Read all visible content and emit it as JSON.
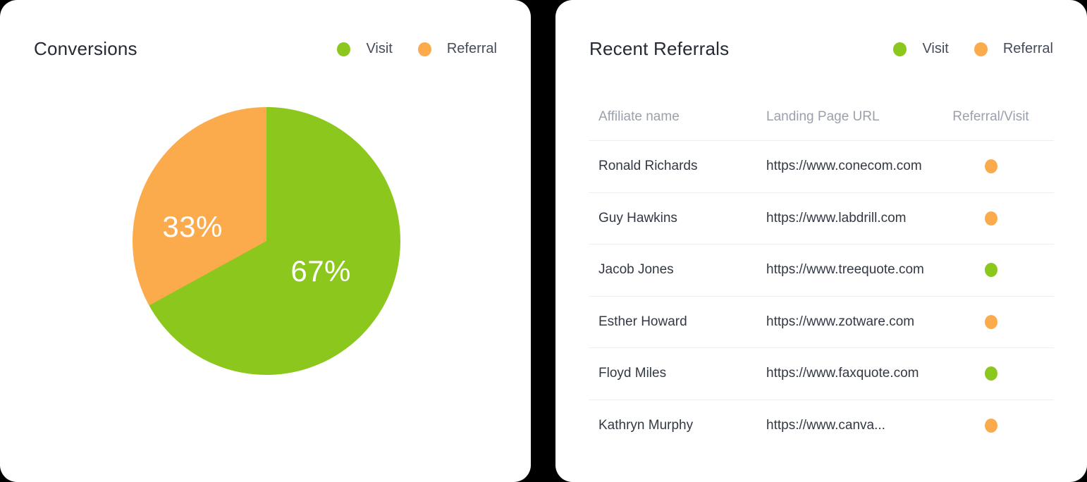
{
  "colors": {
    "visit": "#8BC71D",
    "referral": "#FBAB4C",
    "card_bg": "#FFFFFF",
    "page_bg": "#000000",
    "divider": "#EFECF6",
    "title_text": "#252A35",
    "header_text": "#9BA1AC",
    "cell_text": "#333944"
  },
  "legend": {
    "items": [
      {
        "id": "visit",
        "label": "Visit"
      },
      {
        "id": "referral",
        "label": "Referral"
      }
    ]
  },
  "conversions": {
    "title": "Conversions"
  },
  "chart_data": {
    "type": "pie",
    "title": "Conversions",
    "labels": [
      "Visit",
      "Referral"
    ],
    "values": [
      67,
      33
    ],
    "value_labels": [
      "67%",
      "33%"
    ],
    "colors": [
      "#8BC71D",
      "#FBAB4C"
    ],
    "start_angle_deg": 0,
    "direction": "clockwise",
    "legend_position": "top-right"
  },
  "referrals": {
    "title": "Recent Referrals",
    "columns": [
      "Affiliate name",
      "Landing Page URL",
      "Referral/Visit"
    ],
    "rows": [
      {
        "name": "Ronald Richards",
        "url": "https://www.conecom.com",
        "type": "referral"
      },
      {
        "name": "Guy Hawkins",
        "url": "https://www.labdrill.com",
        "type": "referral"
      },
      {
        "name": "Jacob Jones",
        "url": "https://www.treequote.com",
        "type": "visit"
      },
      {
        "name": "Esther Howard",
        "url": "https://www.zotware.com",
        "type": "referral"
      },
      {
        "name": "Floyd Miles",
        "url": "https://www.faxquote.com",
        "type": "visit"
      },
      {
        "name": "Kathryn Murphy",
        "url": "https://www.canva...",
        "type": "referral"
      }
    ]
  }
}
